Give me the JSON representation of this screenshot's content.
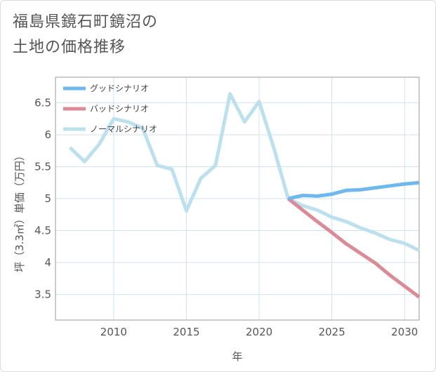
{
  "title_line1": "福島県鏡石町鏡沼の",
  "title_line2": "土地の価格推移",
  "colors": {
    "good": "#6db8ee",
    "bad": "#dc8a96",
    "normal": "#bde0ee",
    "grid": "#cfe3ee",
    "axis": "#999999"
  },
  "chart_data": {
    "type": "line",
    "title": "福島県鏡石町鏡沼の土地の価格推移",
    "xlabel": "年",
    "ylabel": "坪（3.3㎡）単価（万円）",
    "xlim": [
      2006,
      2031
    ],
    "ylim": [
      3.1,
      6.9
    ],
    "xticks": [
      2010,
      2015,
      2020,
      2025,
      2030
    ],
    "xtick_labels": [
      "2010",
      "2015",
      "2020",
      "2025",
      "2030"
    ],
    "yticks": [
      3.5,
      4,
      4.5,
      5,
      5.5,
      6,
      6.5
    ],
    "ytick_labels": [
      "3.5",
      "4",
      "4.5",
      "5",
      "5.5",
      "6",
      "6.5"
    ],
    "legend_position": "top-left",
    "series": [
      {
        "name": "グッドシナリオ",
        "color": "#6db8ee",
        "x": [
          2022,
          2023,
          2024,
          2025,
          2026,
          2027,
          2028,
          2029,
          2030,
          2031
        ],
        "y": [
          5.0,
          5.05,
          5.04,
          5.07,
          5.13,
          5.14,
          5.17,
          5.2,
          5.23,
          5.25
        ]
      },
      {
        "name": "バッドシナリオ",
        "color": "#dc8a96",
        "x": [
          2022,
          2023,
          2024,
          2025,
          2026,
          2027,
          2028,
          2029,
          2030,
          2031
        ],
        "y": [
          5.0,
          4.82,
          4.64,
          4.47,
          4.29,
          4.14,
          3.99,
          3.8,
          3.63,
          3.46
        ]
      },
      {
        "name": "ノーマルシナリオ",
        "color": "#bde0ee",
        "x": [
          2007,
          2008,
          2009,
          2010,
          2011,
          2012,
          2013,
          2014,
          2015,
          2016,
          2017,
          2018,
          2019,
          2020,
          2021,
          2022,
          2023,
          2024,
          2025,
          2026,
          2027,
          2028,
          2029,
          2030,
          2031
        ],
        "y": [
          5.8,
          5.58,
          5.85,
          6.25,
          6.2,
          6.1,
          5.52,
          5.46,
          4.81,
          5.32,
          5.52,
          6.64,
          6.2,
          6.52,
          5.8,
          5.0,
          4.89,
          4.82,
          4.71,
          4.64,
          4.54,
          4.46,
          4.36,
          4.3,
          4.19
        ]
      }
    ]
  }
}
